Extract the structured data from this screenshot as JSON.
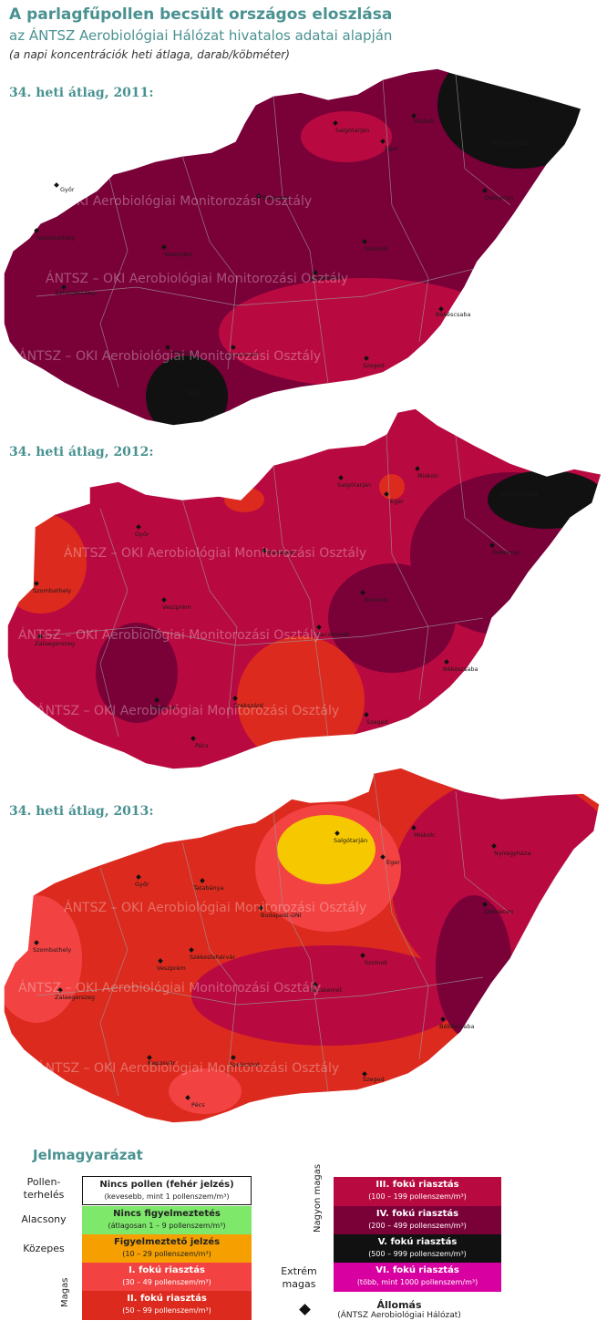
{
  "header": {
    "title": "A parlagfűpollen becsült országos eloszlása",
    "subtitle": "az ÁNTSZ Aerobiológiai Hálózat hivatalos adatai alapján",
    "note": "(a napi koncentrációk heti átlaga, darab/köbméter)"
  },
  "colors": {
    "teal_text": "#4a9191",
    "level0": "#ffffff",
    "level1": "#7ee86b",
    "level2": "#f5a000",
    "level3": "#f24242",
    "level4": "#dc2a1e",
    "level5": "#b80a40",
    "level6": "#7a0038",
    "level7": "#111111",
    "level8": "#d800a0",
    "map_2013_low": "#f5c800"
  },
  "maps": [
    {
      "label": "34. heti átlag, 2011:",
      "cities": [
        {
          "name": "Győr"
        },
        {
          "name": "Szombathely"
        },
        {
          "name": "Zalaegerszeg"
        },
        {
          "name": "Veszprém"
        },
        {
          "name": "Kaposvár"
        },
        {
          "name": "Pécs"
        },
        {
          "name": "Szekszárd"
        },
        {
          "name": "Szeged"
        },
        {
          "name": "Békéscsaba"
        },
        {
          "name": "Kecskemét"
        },
        {
          "name": "Szolnok"
        },
        {
          "name": "Debrecen"
        },
        {
          "name": "Nyíregyháza"
        },
        {
          "name": "Miskolc"
        },
        {
          "name": "Eger"
        },
        {
          "name": "Salgótarján"
        },
        {
          "name": "Budapest"
        }
      ],
      "watermark": "ÁNTSZ – OKI Aerobiológiai Monitorozási Osztály"
    },
    {
      "label": "34. heti átlag, 2012:",
      "cities": [
        {
          "name": "Győr"
        },
        {
          "name": "Szombathely"
        },
        {
          "name": "Zalaegerszeg"
        },
        {
          "name": "Veszprém"
        },
        {
          "name": "Kaposvár"
        },
        {
          "name": "Pécs"
        },
        {
          "name": "Szekszárd"
        },
        {
          "name": "Szeged"
        },
        {
          "name": "Békéscsaba"
        },
        {
          "name": "Kecskemét"
        },
        {
          "name": "Szolnok"
        },
        {
          "name": "Debrecen"
        },
        {
          "name": "Nyíregyháza"
        },
        {
          "name": "Miskolc"
        },
        {
          "name": "Eger"
        },
        {
          "name": "Salgótarján"
        },
        {
          "name": "Budapest"
        }
      ],
      "watermark": "ÁNTSZ – OKI Aerobiológiai Monitorozási Osztály"
    },
    {
      "label": "34. heti átlag, 2013:",
      "cities": [
        {
          "name": "Győr"
        },
        {
          "name": "Tatabánya"
        },
        {
          "name": "Szombathely"
        },
        {
          "name": "Zalaegerszeg"
        },
        {
          "name": "Veszprém"
        },
        {
          "name": "Székesfehérvár"
        },
        {
          "name": "Kaposvár"
        },
        {
          "name": "Pécs"
        },
        {
          "name": "Szekszárd"
        },
        {
          "name": "Szeged"
        },
        {
          "name": "Békéscsaba"
        },
        {
          "name": "Kecskemét"
        },
        {
          "name": "Szolnok"
        },
        {
          "name": "Debrecen"
        },
        {
          "name": "Nyíregyháza"
        },
        {
          "name": "Miskolc"
        },
        {
          "name": "Eger"
        },
        {
          "name": "Salgótarján"
        },
        {
          "name": "Budapest-ÚNI"
        }
      ],
      "watermark": "ÁNTSZ – OKI Aerobiológiai Monitorozási Osztály"
    }
  ],
  "legend": {
    "title": "Jelmagyarázat",
    "levels": {
      "pollen_load": "Pollen-\nterhelés",
      "low": "Alacsony",
      "medium": "Közepes",
      "high": "Magas",
      "very_high": "Nagyon magas",
      "extreme": "Extrém\nmagas"
    },
    "items": {
      "none": {
        "label": "Nincs pollen (fehér jelzés)",
        "range": "(kevesebb, mint 1 pollenszem/m³)"
      },
      "no_warning": {
        "label": "Nincs figyelmeztetés",
        "range": "(átlagosan 1 – 9 pollenszem/m³)"
      },
      "warning": {
        "label": "Figyelmeztető jelzés",
        "range": "(10 – 29 pollenszem/m³)"
      },
      "alert1": {
        "label": "I. fokú riasztás",
        "range": "(30 – 49 pollenszem/m³)"
      },
      "alert2": {
        "label": "II. fokú riasztás",
        "range": "(50 – 99 pollenszem/m³)"
      },
      "alert3": {
        "label": "III. fokú riasztás",
        "range": "(100 – 199 pollenszem/m³)"
      },
      "alert4": {
        "label": "IV. fokú riasztás",
        "range": "(200 – 499 pollenszem/m³)"
      },
      "alert5": {
        "label": "V. fokú riasztás",
        "range": "(500 – 999 pollenszem/m³)"
      },
      "alert6": {
        "label": "VI. fokú riasztás",
        "range": "(több, mint 1000 pollenszem/m³)"
      }
    },
    "station": {
      "label": "Állomás",
      "network": "(ÁNTSZ Aerobiológiai Hálózat)"
    }
  }
}
